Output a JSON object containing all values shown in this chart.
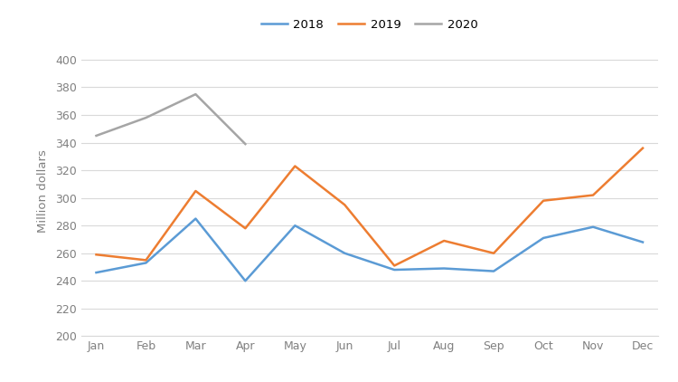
{
  "months": [
    "Jan",
    "Feb",
    "Mar",
    "Apr",
    "May",
    "Jun",
    "Jul",
    "Aug",
    "Sep",
    "Oct",
    "Nov",
    "Dec"
  ],
  "series_2018": [
    246,
    253,
    285,
    240,
    280,
    260,
    248,
    249,
    247,
    271,
    279,
    268
  ],
  "series_2019": [
    259,
    255,
    305,
    278,
    323,
    295,
    251,
    269,
    260,
    298,
    302,
    336
  ],
  "series_2020": [
    345,
    358,
    375,
    339,
    null,
    null,
    null,
    null,
    null,
    null,
    null,
    null
  ],
  "color_2018": "#5b9bd5",
  "color_2019": "#ed7d31",
  "color_2020": "#a5a5a5",
  "ylabel": "Million dollars",
  "ylim": [
    200,
    410
  ],
  "yticks": [
    200,
    220,
    240,
    260,
    280,
    300,
    320,
    340,
    360,
    380,
    400
  ],
  "legend_labels": [
    "2018",
    "2019",
    "2020"
  ],
  "background_color": "#ffffff",
  "grid_color": "#d9d9d9",
  "tick_label_color": "#808080",
  "spine_color": "#d9d9d9"
}
